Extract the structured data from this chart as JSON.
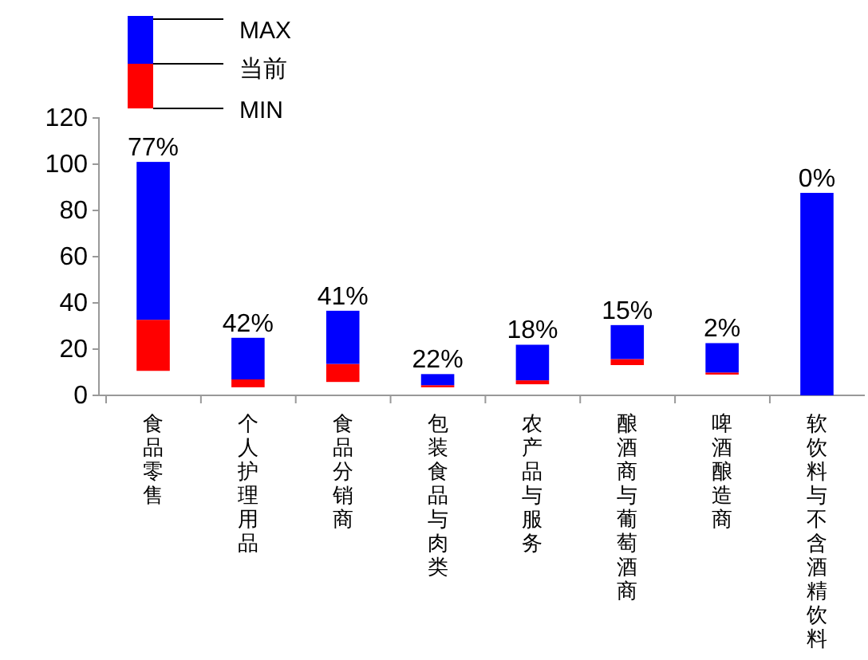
{
  "chart_data": {
    "type": "bar",
    "categories": [
      "食品零售",
      "个人护理用品",
      "食品分销商",
      "包装食品与肉类",
      "农产品与服务",
      "酿酒商与葡萄酒商",
      "啤酒酿造商",
      "软饮料与不含酒精饮料"
    ],
    "series": [
      {
        "color": "#ff0000",
        "base": [
          10.6,
          3.5,
          5.8,
          3.5,
          4.8,
          13.1,
          9.0,
          null
        ],
        "values": [
          22.1,
          3.4,
          7.8,
          0.9,
          1.7,
          2.6,
          0.9,
          null
        ]
      },
      {
        "color": "#0000ff",
        "base": [
          32.7,
          6.9,
          13.6,
          4.4,
          6.5,
          15.7,
          9.9,
          0
        ],
        "values": [
          68.3,
          18.0,
          23.0,
          4.8,
          15.4,
          14.7,
          12.7,
          87.6
        ]
      }
    ],
    "ylim": [
      0,
      120
    ],
    "yticks": [
      0,
      20,
      40,
      60,
      80,
      100,
      120
    ],
    "grid": false,
    "annotations": [
      "MAX",
      "当前",
      "MIN",
      "77%",
      "42%",
      "41%",
      "22%",
      "18%",
      "15%",
      "2%",
      "0%"
    ]
  }
}
